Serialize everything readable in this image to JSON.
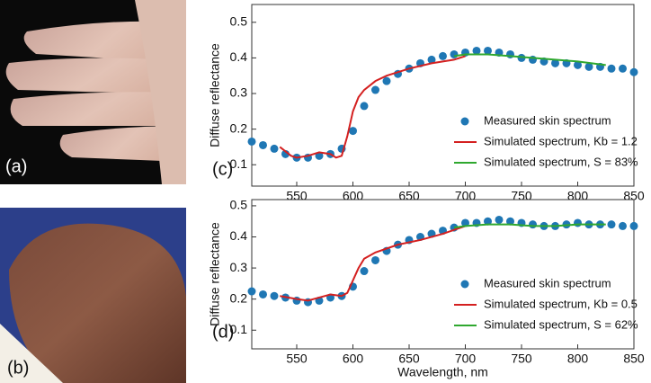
{
  "photos": [
    {
      "label": "(a)"
    },
    {
      "label": "(b)"
    }
  ],
  "chart_data": [
    {
      "type": "scatter-line",
      "panel_label": "(c)",
      "ylabel": "Diffuse reflectance",
      "xlim": [
        510,
        850
      ],
      "xticks": [
        550,
        600,
        650,
        700,
        750,
        800,
        850
      ],
      "ylim": [
        0.04,
        0.55
      ],
      "yticks": [
        0.1,
        0.2,
        0.3,
        0.4,
        0.5
      ],
      "legend": "lower right",
      "series": [
        {
          "name": "Measured skin spectrum",
          "kind": "scatter",
          "color": "#1f77b4",
          "x": [
            510,
            520,
            530,
            540,
            550,
            560,
            570,
            580,
            590,
            600,
            610,
            620,
            630,
            640,
            650,
            660,
            670,
            680,
            690,
            700,
            710,
            720,
            730,
            740,
            750,
            760,
            770,
            780,
            790,
            800,
            810,
            820,
            830,
            840,
            850
          ],
          "values": [
            0.165,
            0.155,
            0.145,
            0.13,
            0.12,
            0.12,
            0.125,
            0.13,
            0.145,
            0.195,
            0.265,
            0.31,
            0.335,
            0.355,
            0.37,
            0.385,
            0.395,
            0.405,
            0.41,
            0.415,
            0.42,
            0.42,
            0.415,
            0.41,
            0.4,
            0.395,
            0.39,
            0.385,
            0.385,
            0.38,
            0.375,
            0.375,
            0.37,
            0.37,
            0.36
          ]
        },
        {
          "name": "Simulated spectrum, Kb = 1.2",
          "kind": "line",
          "color": "#d42020",
          "x": [
            535,
            545,
            550,
            560,
            570,
            580,
            585,
            590,
            595,
            600,
            605,
            610,
            620,
            630,
            650,
            670,
            690,
            700
          ],
          "values": [
            0.15,
            0.125,
            0.12,
            0.125,
            0.135,
            0.13,
            0.12,
            0.125,
            0.18,
            0.25,
            0.29,
            0.31,
            0.335,
            0.35,
            0.37,
            0.385,
            0.395,
            0.405
          ]
        },
        {
          "name": "Simulated spectrum, S = 83%",
          "kind": "line",
          "color": "#2fa82f",
          "x": [
            690,
            700,
            720,
            740,
            760,
            780,
            800,
            825
          ],
          "values": [
            0.405,
            0.41,
            0.41,
            0.405,
            0.4,
            0.395,
            0.39,
            0.38
          ]
        }
      ]
    },
    {
      "type": "scatter-line",
      "panel_label": "(d)",
      "ylabel": "Diffuse reflectance",
      "xlabel": "Wavelength, nm",
      "xlim": [
        510,
        850
      ],
      "xticks": [
        550,
        600,
        650,
        700,
        750,
        800,
        850
      ],
      "ylim": [
        0.04,
        0.52
      ],
      "yticks": [
        0.2,
        0.3,
        0.4,
        0.5,
        0.1
      ],
      "legend": "lower right",
      "series": [
        {
          "name": "Measured skin spectrum",
          "kind": "scatter",
          "color": "#1f77b4",
          "x": [
            510,
            520,
            530,
            540,
            550,
            560,
            570,
            580,
            590,
            600,
            610,
            620,
            630,
            640,
            650,
            660,
            670,
            680,
            690,
            700,
            710,
            720,
            730,
            740,
            750,
            760,
            770,
            780,
            790,
            800,
            810,
            820,
            830,
            840,
            850
          ],
          "values": [
            0.225,
            0.215,
            0.21,
            0.205,
            0.195,
            0.19,
            0.195,
            0.205,
            0.21,
            0.24,
            0.29,
            0.325,
            0.355,
            0.375,
            0.39,
            0.4,
            0.41,
            0.42,
            0.43,
            0.445,
            0.445,
            0.45,
            0.455,
            0.45,
            0.445,
            0.44,
            0.435,
            0.435,
            0.44,
            0.445,
            0.44,
            0.44,
            0.44,
            0.435,
            0.435
          ]
        },
        {
          "name": "Simulated spectrum, Kb = 0.5",
          "kind": "line",
          "color": "#d42020",
          "x": [
            535,
            550,
            560,
            570,
            580,
            590,
            595,
            600,
            605,
            610,
            620,
            640,
            660,
            680,
            700
          ],
          "values": [
            0.21,
            0.2,
            0.195,
            0.205,
            0.215,
            0.21,
            0.22,
            0.26,
            0.3,
            0.33,
            0.35,
            0.375,
            0.39,
            0.41,
            0.435
          ]
        },
        {
          "name": "Simulated spectrum, S = 62%",
          "kind": "line",
          "color": "#2fa82f",
          "x": [
            690,
            700,
            720,
            740,
            760,
            780,
            800,
            825
          ],
          "values": [
            0.43,
            0.435,
            0.44,
            0.44,
            0.435,
            0.435,
            0.44,
            0.44
          ]
        }
      ]
    }
  ]
}
